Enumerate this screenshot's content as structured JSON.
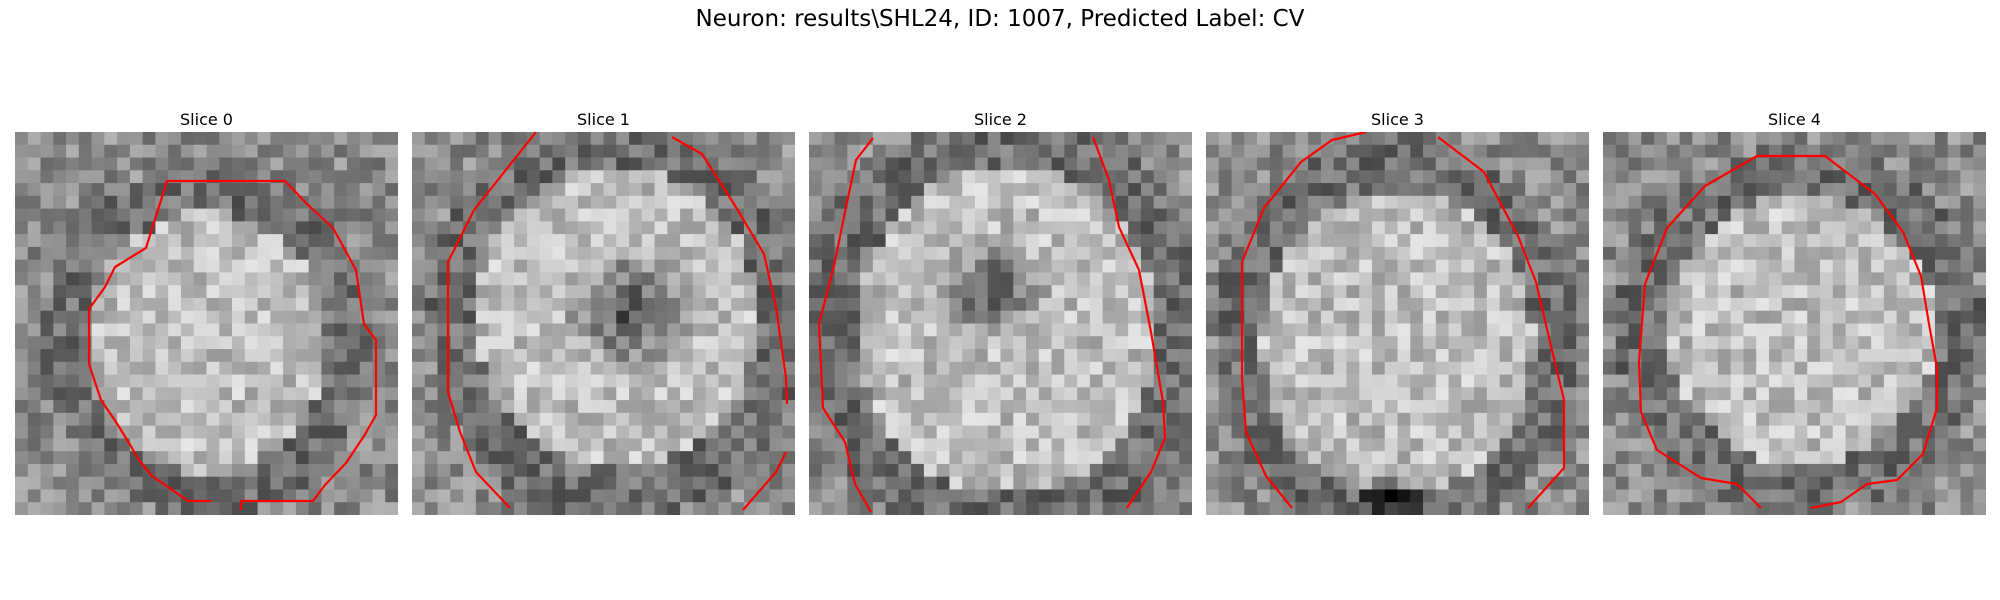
{
  "figure": {
    "title": "Neuron: results\\SHL24, ID: 1007, Predicted Label: CV"
  },
  "panels": [
    {
      "title": "Slice 0"
    },
    {
      "title": "Slice 1"
    },
    {
      "title": "Slice 2"
    },
    {
      "title": "Slice 3"
    },
    {
      "title": "Slice 4"
    }
  ],
  "colors": {
    "contour": "#ff0000",
    "background": "#ffffff"
  },
  "image_colormap": "grayscale"
}
